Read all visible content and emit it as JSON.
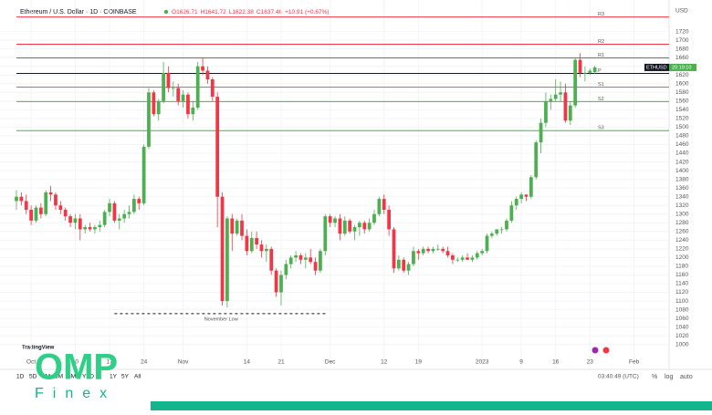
{
  "chart_data": {
    "type": "candlestick",
    "title": "Ethereum / U.S. Dollar · 1D · COINBASE",
    "ohlc_letters": [
      "O",
      "H",
      "L",
      "C"
    ],
    "change": "+10.91 (+0.67%)",
    "currency": "USD",
    "symbol": "ETHUSD",
    "countdown": "20:19:10",
    "up_color": "#4caf50",
    "down_color": "#f23645",
    "xlim": [
      0,
      126
    ],
    "ylim": [
      970,
      1780
    ],
    "yticks": [
      1000,
      1020,
      1040,
      1060,
      1080,
      1100,
      1120,
      1140,
      1160,
      1180,
      1200,
      1220,
      1240,
      1260,
      1280,
      1300,
      1320,
      1340,
      1360,
      1380,
      1400,
      1420,
      1440,
      1460,
      1480,
      1500,
      1520,
      1540,
      1560,
      1580,
      1600,
      1620,
      1640,
      1660,
      1680,
      1700,
      1720
    ],
    "xticks": [
      {
        "value": 3,
        "label": "Oct"
      },
      {
        "value": 12,
        "label": "10"
      },
      {
        "value": 19,
        "label": "17"
      },
      {
        "value": 26,
        "label": "24"
      },
      {
        "value": 34,
        "label": "Nov"
      },
      {
        "value": 47,
        "label": "14"
      },
      {
        "value": 54,
        "label": "21"
      },
      {
        "value": 64,
        "label": "Dec"
      },
      {
        "value": 75,
        "label": "12"
      },
      {
        "value": 82,
        "label": "19"
      },
      {
        "value": 95,
        "label": "2023"
      },
      {
        "value": 103,
        "label": "9"
      },
      {
        "value": 110,
        "label": "16"
      },
      {
        "value": 117,
        "label": "23"
      },
      {
        "value": 126,
        "label": "Feb"
      }
    ],
    "grid": true,
    "levels": [
      {
        "name": "R3",
        "value": 1753.5,
        "color": "#f23645"
      },
      {
        "name": "R2",
        "value": 1690.7,
        "color": "#f23645"
      },
      {
        "name": "R1",
        "value": 1659.3,
        "color": "#f23645"
      },
      {
        "name": "P",
        "value": 1623.7,
        "color": "#131722"
      },
      {
        "name": "S1",
        "value": 1592.3,
        "color": "#4caf50"
      },
      {
        "name": "S2",
        "value": 1558.8,
        "color": "#4caf50"
      },
      {
        "name": "S3",
        "value": 1491.9,
        "color": "#4caf50"
      }
    ],
    "annotation": {
      "text": "November Low",
      "value": 1071,
      "x_from": 20,
      "x_to": 63.5
    },
    "candles": [
      [
        1330,
        1355,
        1310,
        1340
      ],
      [
        1340,
        1350,
        1320,
        1330
      ],
      [
        1330,
        1345,
        1300,
        1310
      ],
      [
        1310,
        1320,
        1275,
        1285
      ],
      [
        1285,
        1320,
        1280,
        1315
      ],
      [
        1315,
        1325,
        1290,
        1300
      ],
      [
        1300,
        1355,
        1295,
        1350
      ],
      [
        1350,
        1365,
        1330,
        1345
      ],
      [
        1345,
        1350,
        1310,
        1320
      ],
      [
        1320,
        1330,
        1300,
        1310
      ],
      [
        1310,
        1315,
        1285,
        1295
      ],
      [
        1295,
        1300,
        1270,
        1280
      ],
      [
        1280,
        1300,
        1265,
        1290
      ],
      [
        1290,
        1300,
        1240,
        1265
      ],
      [
        1265,
        1275,
        1255,
        1270
      ],
      [
        1270,
        1280,
        1260,
        1265
      ],
      [
        1265,
        1275,
        1255,
        1270
      ],
      [
        1270,
        1285,
        1260,
        1275
      ],
      [
        1275,
        1310,
        1270,
        1305
      ],
      [
        1305,
        1335,
        1295,
        1325
      ],
      [
        1325,
        1330,
        1280,
        1285
      ],
      [
        1285,
        1300,
        1265,
        1290
      ],
      [
        1290,
        1310,
        1280,
        1300
      ],
      [
        1300,
        1320,
        1290,
        1305
      ],
      [
        1305,
        1345,
        1300,
        1335
      ],
      [
        1335,
        1340,
        1310,
        1325
      ],
      [
        1325,
        1460,
        1320,
        1455
      ],
      [
        1455,
        1590,
        1450,
        1580
      ],
      [
        1580,
        1585,
        1525,
        1530
      ],
      [
        1530,
        1565,
        1515,
        1560
      ],
      [
        1560,
        1650,
        1555,
        1625
      ],
      [
        1625,
        1640,
        1580,
        1590
      ],
      [
        1590,
        1605,
        1570,
        1590
      ],
      [
        1590,
        1600,
        1550,
        1560
      ],
      [
        1560,
        1585,
        1545,
        1575
      ],
      [
        1575,
        1580,
        1520,
        1530
      ],
      [
        1530,
        1560,
        1515,
        1545
      ],
      [
        1545,
        1650,
        1540,
        1640
      ],
      [
        1640,
        1660,
        1620,
        1630
      ],
      [
        1630,
        1640,
        1600,
        1610
      ],
      [
        1610,
        1615,
        1560,
        1570
      ],
      [
        1570,
        1580,
        1270,
        1340
      ],
      [
        1340,
        1350,
        1090,
        1100
      ],
      [
        1100,
        1295,
        1085,
        1290
      ],
      [
        1290,
        1300,
        1215,
        1255
      ],
      [
        1255,
        1290,
        1250,
        1285
      ],
      [
        1285,
        1300,
        1240,
        1250
      ],
      [
        1250,
        1265,
        1205,
        1215
      ],
      [
        1215,
        1260,
        1210,
        1245
      ],
      [
        1245,
        1260,
        1220,
        1230
      ],
      [
        1230,
        1240,
        1200,
        1215
      ],
      [
        1215,
        1230,
        1190,
        1220
      ],
      [
        1220,
        1225,
        1160,
        1170
      ],
      [
        1170,
        1175,
        1110,
        1120
      ],
      [
        1120,
        1170,
        1090,
        1160
      ],
      [
        1160,
        1195,
        1150,
        1185
      ],
      [
        1185,
        1205,
        1175,
        1200
      ],
      [
        1200,
        1215,
        1190,
        1205
      ],
      [
        1205,
        1210,
        1185,
        1195
      ],
      [
        1195,
        1210,
        1175,
        1200
      ],
      [
        1200,
        1220,
        1185,
        1190
      ],
      [
        1190,
        1200,
        1160,
        1170
      ],
      [
        1170,
        1220,
        1165,
        1215
      ],
      [
        1215,
        1300,
        1205,
        1295
      ],
      [
        1295,
        1300,
        1270,
        1280
      ],
      [
        1280,
        1295,
        1270,
        1290
      ],
      [
        1290,
        1300,
        1240,
        1255
      ],
      [
        1255,
        1295,
        1250,
        1285
      ],
      [
        1285,
        1290,
        1255,
        1260
      ],
      [
        1260,
        1275,
        1240,
        1270
      ],
      [
        1270,
        1285,
        1250,
        1280
      ],
      [
        1280,
        1285,
        1255,
        1265
      ],
      [
        1265,
        1290,
        1260,
        1280
      ],
      [
        1280,
        1310,
        1275,
        1300
      ],
      [
        1300,
        1340,
        1295,
        1335
      ],
      [
        1335,
        1345,
        1300,
        1310
      ],
      [
        1310,
        1320,
        1250,
        1265
      ],
      [
        1265,
        1270,
        1165,
        1175
      ],
      [
        1175,
        1205,
        1170,
        1195
      ],
      [
        1195,
        1200,
        1165,
        1170
      ],
      [
        1170,
        1190,
        1160,
        1185
      ],
      [
        1185,
        1225,
        1180,
        1215
      ],
      [
        1215,
        1220,
        1195,
        1210
      ],
      [
        1210,
        1225,
        1205,
        1220
      ],
      [
        1220,
        1225,
        1210,
        1215
      ],
      [
        1215,
        1225,
        1210,
        1220
      ],
      [
        1220,
        1230,
        1215,
        1220
      ],
      [
        1220,
        1225,
        1210,
        1215
      ],
      [
        1215,
        1225,
        1200,
        1205
      ],
      [
        1205,
        1210,
        1185,
        1195
      ],
      [
        1195,
        1200,
        1190,
        1195
      ],
      [
        1195,
        1205,
        1190,
        1200
      ],
      [
        1200,
        1210,
        1195,
        1195
      ],
      [
        1195,
        1205,
        1190,
        1200
      ],
      [
        1200,
        1215,
        1195,
        1210
      ],
      [
        1210,
        1220,
        1205,
        1215
      ],
      [
        1215,
        1255,
        1210,
        1250
      ],
      [
        1250,
        1260,
        1245,
        1255
      ],
      [
        1255,
        1265,
        1250,
        1265
      ],
      [
        1265,
        1270,
        1255,
        1265
      ],
      [
        1265,
        1290,
        1260,
        1285
      ],
      [
        1285,
        1330,
        1280,
        1320
      ],
      [
        1320,
        1340,
        1310,
        1335
      ],
      [
        1335,
        1350,
        1325,
        1345
      ],
      [
        1345,
        1345,
        1330,
        1340
      ],
      [
        1340,
        1390,
        1335,
        1385
      ],
      [
        1385,
        1470,
        1380,
        1465
      ],
      [
        1465,
        1520,
        1440,
        1510
      ],
      [
        1510,
        1580,
        1500,
        1560
      ],
      [
        1560,
        1575,
        1540,
        1565
      ],
      [
        1565,
        1610,
        1560,
        1575
      ],
      [
        1575,
        1605,
        1560,
        1580
      ],
      [
        1580,
        1600,
        1510,
        1515
      ],
      [
        1515,
        1560,
        1505,
        1550
      ],
      [
        1550,
        1660,
        1545,
        1655
      ],
      [
        1655,
        1670,
        1615,
        1625
      ],
      [
        1625,
        1640,
        1605,
        1625
      ],
      [
        1625,
        1635,
        1620,
        1630
      ],
      [
        1626.71,
        1641.72,
        1622.38,
        1637.46
      ]
    ]
  },
  "watermark": "TradingView",
  "toolbar": {
    "ranges": [
      "1D",
      "5D",
      "1M",
      "3M",
      "6M",
      "YTD",
      "1Y",
      "5Y",
      "All"
    ],
    "time": "03:40:49 (UTC)",
    "percent": "%",
    "log": "log",
    "auto": "auto"
  },
  "logo": {
    "name": "OMP",
    "sub": "Finex"
  }
}
